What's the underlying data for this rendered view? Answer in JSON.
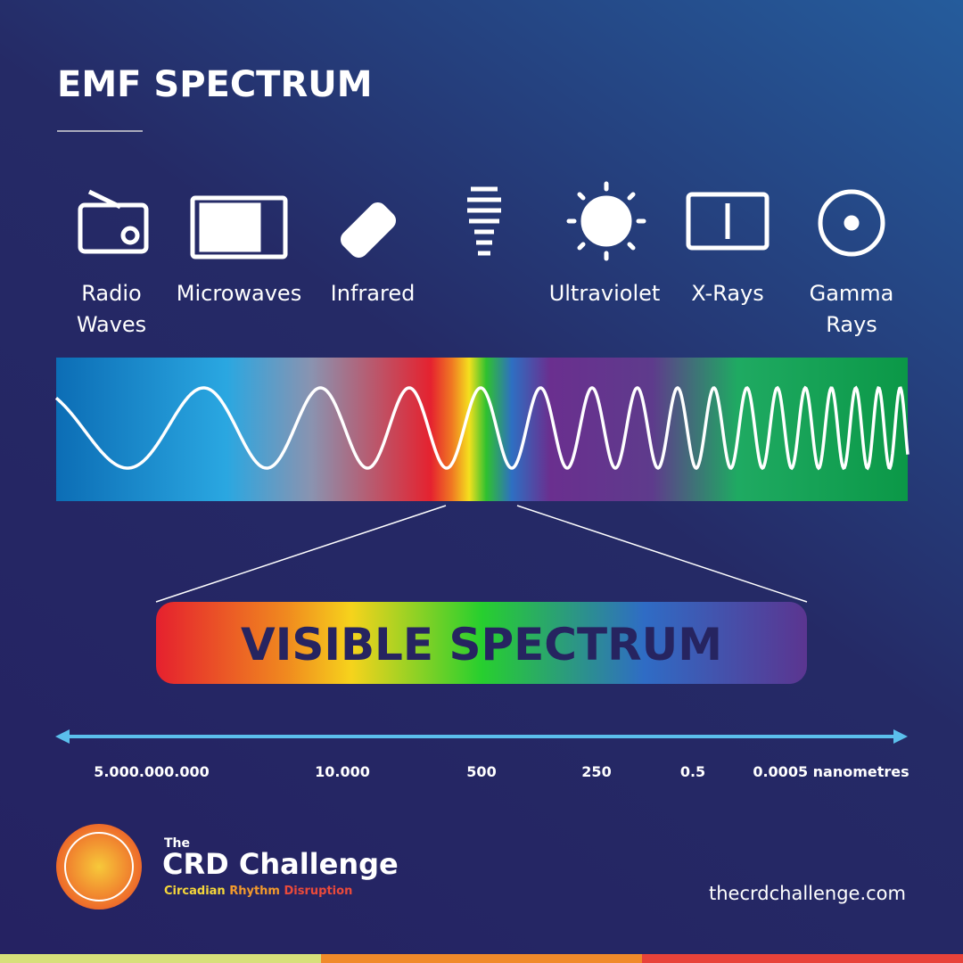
{
  "header": {
    "title": "EMF SPECTRUM"
  },
  "bands": [
    {
      "label": "Radio Waves"
    },
    {
      "label": "Microwaves"
    },
    {
      "label": "Infrared"
    },
    {
      "label": null
    },
    {
      "label": "Ultraviolet"
    },
    {
      "label": "X-Rays"
    },
    {
      "label": "Gamma Rays"
    }
  ],
  "visible": {
    "label": "VISIBLE SPECTRUM"
  },
  "scale": {
    "labels": [
      "5.000.000.000",
      "10.000",
      "500",
      "250",
      "0.5",
      "0.0005 nanometres"
    ]
  },
  "footer": {
    "logo": {
      "prefix": "The",
      "name": "CRD Challenge",
      "tagline": [
        "Circadian",
        "Rhythm",
        "Disruption"
      ]
    },
    "url": "thecrdchallenge.com"
  }
}
